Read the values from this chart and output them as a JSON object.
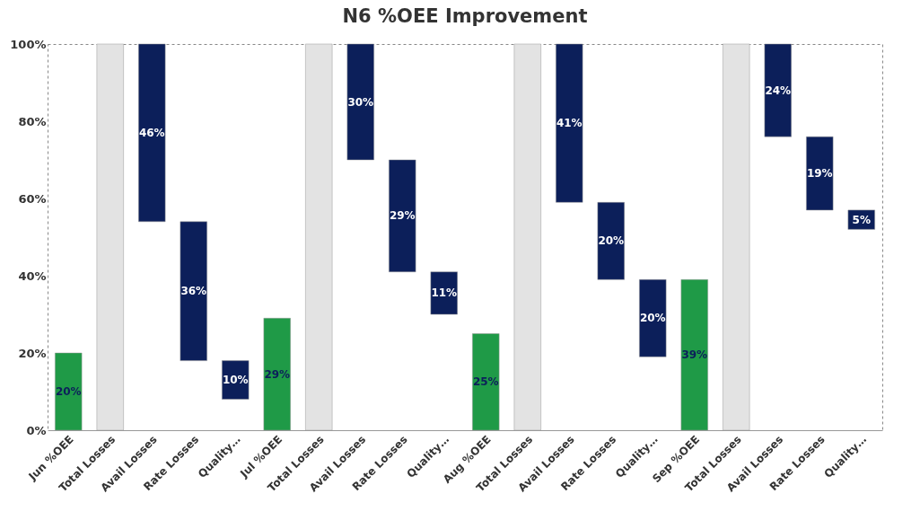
{
  "chart_data": {
    "type": "bar",
    "title": "N6 %OEE Improvement",
    "categories": [
      "Jun %OEE",
      "Total Losses",
      "Avail Losses",
      "Rate Losses",
      "Quality…",
      "Jul %OEE",
      "Total Losses",
      "Avail Losses",
      "Rate Losses",
      "Quality…",
      "Aug %OEE",
      "Total Losses",
      "Avail Losses",
      "Rate Losses",
      "Quality…",
      "Sep %OEE",
      "Total Losses",
      "Avail Losses",
      "Rate Losses",
      "Quality…"
    ],
    "values": [
      20,
      100,
      46,
      36,
      10,
      29,
      100,
      30,
      29,
      11,
      25,
      100,
      41,
      20,
      20,
      39,
      100,
      24,
      19,
      5
    ],
    "base": [
      0,
      0,
      54,
      18,
      8,
      0,
      0,
      70,
      41,
      30,
      0,
      0,
      59,
      39,
      19,
      0,
      0,
      76,
      57,
      52
    ],
    "colors": [
      "#1f9a47",
      "#e3e3e3",
      "#0c1f5a",
      "#0c1f5a",
      "#0c1f5a",
      "#1f9a47",
      "#e3e3e3",
      "#0c1f5a",
      "#0c1f5a",
      "#0c1f5a",
      "#1f9a47",
      "#e3e3e3",
      "#0c1f5a",
      "#0c1f5a",
      "#0c1f5a",
      "#1f9a47",
      "#e3e3e3",
      "#0c1f5a",
      "#0c1f5a",
      "#0c1f5a"
    ],
    "value_labels": [
      "20%",
      null,
      "46%",
      "36%",
      "10%",
      "29%",
      null,
      "30%",
      "29%",
      "11%",
      "25%",
      null,
      "41%",
      "20%",
      "20%",
      "39%",
      null,
      "24%",
      "19%",
      "5%"
    ],
    "ylim": [
      0,
      100
    ],
    "yticks": [
      {
        "value": 0,
        "label": "0%"
      },
      {
        "value": 20,
        "label": "20%"
      },
      {
        "value": 40,
        "label": "40%"
      },
      {
        "value": 60,
        "label": "60%"
      },
      {
        "value": 80,
        "label": "80%"
      },
      {
        "value": 100,
        "label": "100%"
      }
    ],
    "grid": false
  }
}
